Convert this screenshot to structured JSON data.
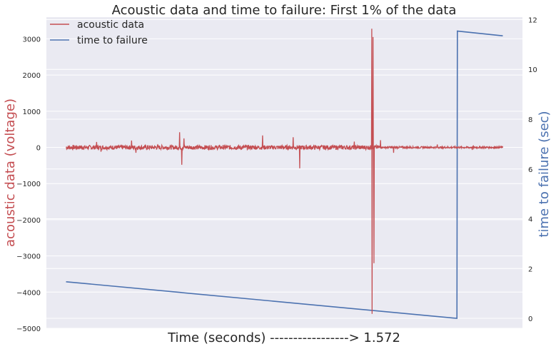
{
  "chart_data": {
    "type": "line",
    "title": "Acoustic data and time to failure: First 1% of the data",
    "xlabel": "Time (seconds) -----------------> 1.572",
    "ylabel_left": "acoustic data (voltage)",
    "ylabel_right": "time to failure (sec)",
    "ylim_left": [
      -5000,
      3600
    ],
    "ylim_right": [
      -0.4,
      12.1
    ],
    "yticks_left": [
      3000,
      2000,
      1000,
      0,
      -1000,
      -2000,
      -3000,
      -4000,
      -5000
    ],
    "yticks_left_labels": [
      "3000",
      "2000",
      "1000",
      "0",
      "−1000",
      "−2000",
      "−3000",
      "−4000",
      "−5000"
    ],
    "yticks_right": [
      0,
      2,
      4,
      6,
      8,
      10,
      12
    ],
    "yticks_right_labels": [
      "0",
      "2",
      "4",
      "6",
      "8",
      "10",
      "12"
    ],
    "xlim": [
      -0.045,
      1.045
    ],
    "grid": true,
    "legend_position": "top-left",
    "colors": {
      "acoustic": "#c44e52",
      "ttf": "#4c72b0",
      "axes_bg": "#eaeaf2",
      "grid": "#ffffff"
    },
    "series": [
      {
        "name": "acoustic data",
        "axis": "left",
        "baseline_amplitude": 60,
        "spikes": [
          {
            "x": 0.07,
            "y": 150
          },
          {
            "x": 0.08,
            "y": -120
          },
          {
            "x": 0.15,
            "y": 190
          },
          {
            "x": 0.16,
            "y": -150
          },
          {
            "x": 0.26,
            "y": 420
          },
          {
            "x": 0.265,
            "y": -480
          },
          {
            "x": 0.27,
            "y": 250
          },
          {
            "x": 0.45,
            "y": 330
          },
          {
            "x": 0.52,
            "y": 280
          },
          {
            "x": 0.535,
            "y": -580
          },
          {
            "x": 0.66,
            "y": 160
          },
          {
            "x": 0.7,
            "y": 3280
          },
          {
            "x": 0.701,
            "y": -4600
          },
          {
            "x": 0.703,
            "y": 3050
          },
          {
            "x": 0.705,
            "y": -3200
          },
          {
            "x": 0.72,
            "y": 200
          },
          {
            "x": 0.75,
            "y": -150
          },
          {
            "x": 0.85,
            "y": 80
          },
          {
            "x": 0.93,
            "y": -70
          }
        ]
      },
      {
        "name": "time to failure",
        "axis": "right",
        "x": [
          0.0,
          0.895,
          0.896,
          1.0
        ],
        "y": [
          1.47,
          0.0,
          11.54,
          11.35
        ]
      }
    ]
  }
}
